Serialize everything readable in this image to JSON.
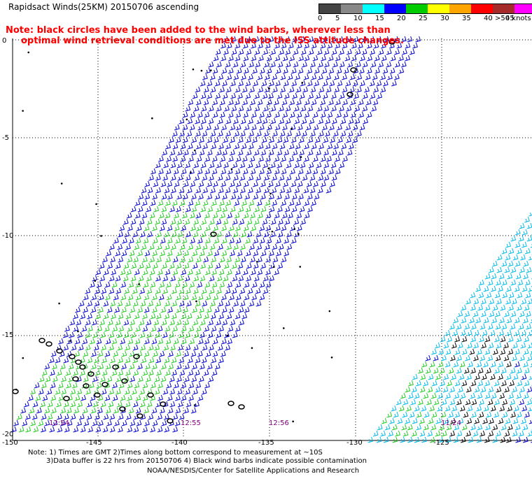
{
  "title": "Rapidsact Winds(25KM) 20150706 ascending",
  "note_red": {
    "line1": "Note: black circles have been added to the wind barbs, wherever less than",
    "line2": "optimal wind retrieval conditions are met due to the ISS attitude changes."
  },
  "legend": {
    "labels": [
      "0",
      "5",
      "10",
      "15",
      "20",
      "25",
      "30",
      "35",
      "40",
      "45",
      ">50 knots"
    ],
    "colors": [
      "#444444",
      "#888888",
      "#00ffff",
      "#0000ff",
      "#00cc00",
      "#ffff00",
      "#ffa500",
      "#ff0000",
      "#a52a2a",
      "#ff00ff",
      "#800080"
    ]
  },
  "axes": {
    "lat_labels": [
      "0",
      "-5",
      "-10",
      "-15",
      "-20"
    ],
    "lon_labels": [
      "-150",
      "-145",
      "-140",
      "-135",
      "-130",
      "-125"
    ]
  },
  "pass_times": [
    "12:54",
    "12:55",
    "12:56",
    "11:24"
  ],
  "footer": {
    "line1": "Note: 1) Times are GMT 2)Times along bottom correspond to measurement at ~10S",
    "line2": "3)Data buffer is 22 hrs from 20150706 4) Black wind barbs indicate possible contamination",
    "line3": "NOAA/NESDIS/Center for Satellite Applications and Research"
  },
  "colors": {
    "barb_blue": "#0000cc",
    "barb_green": "#22cc22",
    "barb_cyan": "#00bbee",
    "barb_black": "#000000",
    "grid": "#000000",
    "note_red": "#ff0000",
    "time_purple": "#800080"
  }
}
